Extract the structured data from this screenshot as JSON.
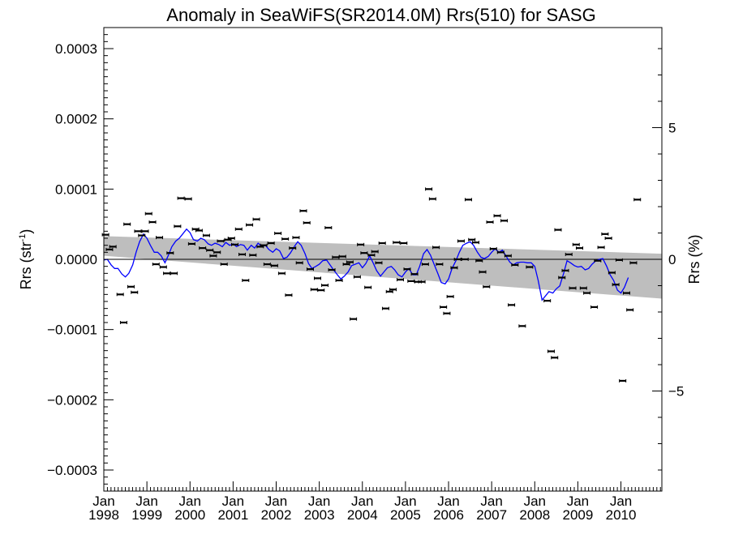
{
  "chart_data": {
    "type": "scatter",
    "title": "Anomaly in SeaWiFS(SR2014.0M) Rrs(510) for SASG",
    "ylabel_left": "Rrs (str",
    "ylabel_left_sup": "-1",
    "ylabel_left_close": ")",
    "ylabel_right": "Rrs (%)",
    "xlim": [
      1998.0,
      2010.95
    ],
    "ylim": [
      -0.00033,
      0.00033
    ],
    "y2lim": [
      -8.8,
      8.8
    ],
    "x_month_label": "Jan",
    "x_ticks": [
      1998,
      1999,
      2000,
      2001,
      2002,
      2003,
      2004,
      2005,
      2006,
      2007,
      2008,
      2009,
      2010
    ],
    "x_tick_labels": [
      "1998",
      "1999",
      "2000",
      "2001",
      "2002",
      "2003",
      "2004",
      "2005",
      "2006",
      "2007",
      "2008",
      "2009",
      "2010"
    ],
    "y_ticks": [
      -0.0003,
      -0.0002,
      -0.0001,
      0.0,
      0.0001,
      0.0002,
      0.0003
    ],
    "y_tick_labels": [
      "−0.0003",
      "−0.0002",
      "−0.0001",
      "0.0000",
      "0.0001",
      "0.0002",
      "0.0003"
    ],
    "y2_ticks": [
      -5,
      0,
      5
    ],
    "y2_tick_labels": [
      "−5",
      "0",
      "5"
    ],
    "trend_band": {
      "x": [
        1998.0,
        2010.95
      ],
      "upper": [
        3.3e-05,
        8e-06
      ],
      "lower": [
        5e-06,
        -5.6e-05
      ]
    },
    "zero_line": 0.0,
    "colors": {
      "band": "#bebebe",
      "line": "#0000ff",
      "points": "#000000"
    },
    "points": [
      [
        1998.04,
        3.5e-05
      ],
      [
        1998.13,
        1.4e-05
      ],
      [
        1998.21,
        1.8e-05
      ],
      [
        1998.38,
        -5e-05
      ],
      [
        1998.46,
        -9e-05
      ],
      [
        1998.54,
        5e-05
      ],
      [
        1998.63,
        -3.9e-05
      ],
      [
        1998.71,
        -4.7e-05
      ],
      [
        1998.79,
        4e-05
      ],
      [
        1998.88,
        3.4e-05
      ],
      [
        1998.96,
        4e-05
      ],
      [
        1999.04,
        6.5e-05
      ],
      [
        1999.13,
        5.3e-05
      ],
      [
        1999.21,
        -7e-06
      ],
      [
        1999.29,
        3.1e-05
      ],
      [
        1999.38,
        -1.1e-05
      ],
      [
        1999.46,
        -2e-05
      ],
      [
        1999.54,
        9e-06
      ],
      [
        1999.63,
        -2e-05
      ],
      [
        1999.71,
        4.7e-05
      ],
      [
        1999.79,
        8.7e-05
      ],
      [
        1999.96,
        8.6e-05
      ],
      [
        2000.04,
        2.2e-05
      ],
      [
        2000.13,
        4.3e-05
      ],
      [
        2000.21,
        4.1e-05
      ],
      [
        2000.29,
        1.6e-05
      ],
      [
        2000.38,
        3.4e-05
      ],
      [
        2000.46,
        1.3e-05
      ],
      [
        2000.54,
        5e-06
      ],
      [
        2000.63,
        1e-05
      ],
      [
        2000.71,
        2.6e-05
      ],
      [
        2000.79,
        -7e-06
      ],
      [
        2000.88,
        2.8e-05
      ],
      [
        2000.96,
        3e-05
      ],
      [
        2001.04,
        2.1e-05
      ],
      [
        2001.13,
        4.3e-05
      ],
      [
        2001.21,
        7e-06
      ],
      [
        2001.29,
        -3e-05
      ],
      [
        2001.38,
        4.9e-05
      ],
      [
        2001.46,
        6e-06
      ],
      [
        2001.54,
        5.7e-05
      ],
      [
        2001.63,
        1.8e-05
      ],
      [
        2001.71,
        2e-05
      ],
      [
        2001.79,
        -7e-06
      ],
      [
        2001.88,
        2.3e-05
      ],
      [
        2001.96,
        -9e-06
      ],
      [
        2002.04,
        3.7e-05
      ],
      [
        2002.13,
        -2e-05
      ],
      [
        2002.21,
        2.9e-05
      ],
      [
        2002.29,
        -5.1e-05
      ],
      [
        2002.38,
        1.6e-05
      ],
      [
        2002.46,
        3.1e-05
      ],
      [
        2002.54,
        -5e-06
      ],
      [
        2002.63,
        6.9e-05
      ],
      [
        2002.71,
        5.2e-05
      ],
      [
        2002.79,
        -1.4e-05
      ],
      [
        2002.88,
        -4.3e-05
      ],
      [
        2002.96,
        -2.7e-05
      ],
      [
        2003.04,
        -4.4e-05
      ],
      [
        2003.13,
        -3.7e-05
      ],
      [
        2003.21,
        4.5e-05
      ],
      [
        2003.29,
        -1.5e-05
      ],
      [
        2003.38,
        3e-06
      ],
      [
        2003.46,
        -3e-05
      ],
      [
        2003.54,
        4e-06
      ],
      [
        2003.63,
        -7e-06
      ],
      [
        2003.71,
        -4e-06
      ],
      [
        2003.79,
        -8.5e-05
      ],
      [
        2003.88,
        -2.5e-05
      ],
      [
        2003.96,
        2.1e-05
      ],
      [
        2004.04,
        9e-06
      ],
      [
        2004.13,
        -4e-05
      ],
      [
        2004.21,
        6e-06
      ],
      [
        2004.29,
        1.1e-05
      ],
      [
        2004.38,
        -5e-06
      ],
      [
        2004.46,
        2.3e-05
      ],
      [
        2004.54,
        -7e-05
      ],
      [
        2004.63,
        -4.6e-05
      ],
      [
        2004.71,
        -4.3e-05
      ],
      [
        2004.79,
        2.4e-05
      ],
      [
        2004.88,
        -2.9e-05
      ],
      [
        2004.96,
        2.3e-05
      ],
      [
        2005.04,
        -1.4e-05
      ],
      [
        2005.13,
        -3.1e-05
      ],
      [
        2005.21,
        -2.1e-05
      ],
      [
        2005.29,
        -3.2e-05
      ],
      [
        2005.38,
        -3.2e-05
      ],
      [
        2005.46,
        -7e-06
      ],
      [
        2005.54,
        0.0001
      ],
      [
        2005.63,
        8.6e-05
      ],
      [
        2005.71,
        1.7e-05
      ],
      [
        2005.79,
        -7e-06
      ],
      [
        2005.88,
        -6.8e-05
      ],
      [
        2005.96,
        -7.7e-05
      ],
      [
        2006.04,
        -5.3e-05
      ],
      [
        2006.13,
        -1.2e-05
      ],
      [
        2006.21,
        0.0
      ],
      [
        2006.29,
        2.6e-05
      ],
      [
        2006.38,
        0.0
      ],
      [
        2006.46,
        8.5e-05
      ],
      [
        2006.54,
        2.8e-05
      ],
      [
        2006.63,
        2.4e-05
      ],
      [
        2006.71,
        -2e-06
      ],
      [
        2006.79,
        -1.8e-05
      ],
      [
        2006.88,
        -3.9e-05
      ],
      [
        2006.96,
        5.3e-05
      ],
      [
        2007.04,
        1.5e-05
      ],
      [
        2007.13,
        6.2e-05
      ],
      [
        2007.21,
        1e-05
      ],
      [
        2007.29,
        5.5e-05
      ],
      [
        2007.38,
        5e-06
      ],
      [
        2007.46,
        -6.5e-05
      ],
      [
        2007.54,
        -8e-06
      ],
      [
        2007.71,
        -9.5e-05
      ],
      [
        2007.88,
        -1.1e-05
      ],
      [
        2008.29,
        -5.9e-05
      ],
      [
        2008.38,
        -0.000131
      ],
      [
        2008.46,
        -0.00014
      ],
      [
        2008.54,
        4.2e-05
      ],
      [
        2008.63,
        -2.6e-05
      ],
      [
        2008.71,
        -1.6e-05
      ],
      [
        2008.79,
        7e-06
      ],
      [
        2008.88,
        -4.1e-05
      ],
      [
        2008.96,
        2.1e-05
      ],
      [
        2009.04,
        1.6e-05
      ],
      [
        2009.13,
        -4.1e-05
      ],
      [
        2009.21,
        -4.8e-05
      ],
      [
        2009.38,
        -6.8e-05
      ],
      [
        2009.46,
        -2e-06
      ],
      [
        2009.54,
        1.7e-05
      ],
      [
        2009.63,
        3.6e-05
      ],
      [
        2009.71,
        3e-05
      ],
      [
        2009.79,
        -1.9e-05
      ],
      [
        2009.88,
        -3.6e-05
      ],
      [
        2009.96,
        -1e-06
      ],
      [
        2010.04,
        -0.000173
      ],
      [
        2010.13,
        -4.8e-05
      ],
      [
        2010.21,
        -7.2e-05
      ],
      [
        2010.29,
        -5e-06
      ],
      [
        2010.38,
        8.5e-05
      ]
    ],
    "line": [
      [
        1998.0,
        -1e-06
      ],
      [
        1998.08,
        0.0
      ],
      [
        1998.17,
        -8e-06
      ],
      [
        1998.25,
        -1.3e-05
      ],
      [
        1998.33,
        -1.3e-05
      ],
      [
        1998.42,
        -2.1e-05
      ],
      [
        1998.5,
        -2.5e-05
      ],
      [
        1998.58,
        -2e-05
      ],
      [
        1998.67,
        -8e-06
      ],
      [
        1998.75,
        1e-05
      ],
      [
        1998.83,
        2.5e-05
      ],
      [
        1998.92,
        3.6e-05
      ],
      [
        1999.0,
        3e-05
      ],
      [
        1999.08,
        2e-05
      ],
      [
        1999.17,
        1e-05
      ],
      [
        1999.25,
        1e-05
      ],
      [
        1999.33,
        5e-06
      ],
      [
        1999.42,
        -5e-06
      ],
      [
        1999.5,
        6e-06
      ],
      [
        1999.58,
        1.8e-05
      ],
      [
        1999.67,
        2.6e-05
      ],
      [
        1999.75,
        3e-05
      ],
      [
        1999.83,
        3.6e-05
      ],
      [
        1999.92,
        4.3e-05
      ],
      [
        2000.0,
        3.8e-05
      ],
      [
        2000.08,
        2.8e-05
      ],
      [
        2000.17,
        2.6e-05
      ],
      [
        2000.25,
        3e-05
      ],
      [
        2000.33,
        2.8e-05
      ],
      [
        2000.42,
        2.2e-05
      ],
      [
        2000.5,
        2e-05
      ],
      [
        2000.58,
        2.3e-05
      ],
      [
        2000.67,
        2.1e-05
      ],
      [
        2000.75,
        1.8e-05
      ],
      [
        2000.83,
        2.4e-05
      ],
      [
        2000.92,
        2e-05
      ],
      [
        2001.0,
        2.2e-05
      ],
      [
        2001.08,
        1.8e-05
      ],
      [
        2001.17,
        2.1e-05
      ],
      [
        2001.25,
        2e-05
      ],
      [
        2001.33,
        1.3e-05
      ],
      [
        2001.42,
        2e-05
      ],
      [
        2001.5,
        1.6e-05
      ],
      [
        2001.58,
        2.3e-05
      ],
      [
        2001.67,
        1.8e-05
      ],
      [
        2001.75,
        2e-05
      ],
      [
        2001.83,
        1.4e-05
      ],
      [
        2001.92,
        1e-05
      ],
      [
        2002.0,
        1.5e-05
      ],
      [
        2002.08,
        1.2e-05
      ],
      [
        2002.17,
        1e-06
      ],
      [
        2002.25,
        3e-06
      ],
      [
        2002.33,
        9e-06
      ],
      [
        2002.42,
        1.8e-05
      ],
      [
        2002.5,
        2.5e-05
      ],
      [
        2002.58,
        2e-05
      ],
      [
        2002.67,
        8e-06
      ],
      [
        2002.75,
        -6e-06
      ],
      [
        2002.83,
        -1.3e-05
      ],
      [
        2002.92,
        -1e-05
      ],
      [
        2003.0,
        -7e-06
      ],
      [
        2003.08,
        -2e-06
      ],
      [
        2003.17,
        -1e-06
      ],
      [
        2003.25,
        -8e-06
      ],
      [
        2003.33,
        -1.5e-05
      ],
      [
        2003.42,
        -2.2e-05
      ],
      [
        2003.5,
        -2.8e-05
      ],
      [
        2003.58,
        -2.4e-05
      ],
      [
        2003.67,
        -1.8e-05
      ],
      [
        2003.75,
        -9e-06
      ],
      [
        2003.83,
        -7e-06
      ],
      [
        2003.92,
        -5e-06
      ],
      [
        2004.0,
        -1.2e-05
      ],
      [
        2004.08,
        -6e-06
      ],
      [
        2004.17,
        5e-06
      ],
      [
        2004.25,
        -5e-06
      ],
      [
        2004.33,
        -1.6e-05
      ],
      [
        2004.42,
        -2.4e-05
      ],
      [
        2004.5,
        -1.8e-05
      ],
      [
        2004.58,
        -1.2e-05
      ],
      [
        2004.67,
        -1e-05
      ],
      [
        2004.75,
        -1.5e-05
      ],
      [
        2004.83,
        -2.2e-05
      ],
      [
        2004.92,
        -2.5e-05
      ],
      [
        2005.0,
        -1.8e-05
      ],
      [
        2005.08,
        -1.3e-05
      ],
      [
        2005.17,
        -2.2e-05
      ],
      [
        2005.25,
        -2.2e-05
      ],
      [
        2005.33,
        -1e-05
      ],
      [
        2005.42,
        8e-06
      ],
      [
        2005.5,
        1.4e-05
      ],
      [
        2005.58,
        6e-06
      ],
      [
        2005.67,
        -8e-06
      ],
      [
        2005.75,
        -2e-05
      ],
      [
        2005.83,
        -3.3e-05
      ],
      [
        2005.92,
        -3.5e-05
      ],
      [
        2006.0,
        -2.8e-05
      ],
      [
        2006.08,
        -1.3e-05
      ],
      [
        2006.17,
        -2e-06
      ],
      [
        2006.25,
        1e-05
      ],
      [
        2006.33,
        2e-05
      ],
      [
        2006.42,
        2.3e-05
      ],
      [
        2006.5,
        2.5e-05
      ],
      [
        2006.58,
        2e-05
      ],
      [
        2006.67,
        1e-05
      ],
      [
        2006.75,
        3e-06
      ],
      [
        2006.83,
        1e-06
      ],
      [
        2006.92,
        4e-06
      ],
      [
        2007.0,
        1e-05
      ],
      [
        2007.08,
        1.5e-05
      ],
      [
        2007.17,
        1e-05
      ],
      [
        2007.25,
        1.3e-05
      ],
      [
        2007.33,
        5e-06
      ],
      [
        2007.42,
        -4e-06
      ],
      [
        2007.5,
        -8e-06
      ],
      [
        2007.58,
        -5e-06
      ],
      [
        2007.67,
        -4e-06
      ],
      [
        2007.75,
        -4e-06
      ],
      [
        2007.83,
        -5e-06
      ],
      [
        2007.92,
        -5e-06
      ],
      [
        2008.0,
        -1e-05
      ],
      [
        2008.08,
        -3e-05
      ],
      [
        2008.17,
        -5.8e-05
      ],
      [
        2008.25,
        -5.2e-05
      ],
      [
        2008.33,
        -4.6e-05
      ],
      [
        2008.42,
        -4.8e-05
      ],
      [
        2008.5,
        -4.2e-05
      ],
      [
        2008.58,
        -3.8e-05
      ],
      [
        2008.67,
        -2e-05
      ],
      [
        2008.75,
        -2e-06
      ],
      [
        2008.83,
        -5e-06
      ],
      [
        2008.92,
        -9e-06
      ],
      [
        2009.0,
        -1.1e-05
      ],
      [
        2009.08,
        -1e-05
      ],
      [
        2009.17,
        -1.5e-05
      ],
      [
        2009.25,
        -1.3e-05
      ],
      [
        2009.33,
        -7e-06
      ],
      [
        2009.42,
        -2e-06
      ],
      [
        2009.5,
        0.0
      ],
      [
        2009.58,
        1e-06
      ],
      [
        2009.67,
        -1e-05
      ],
      [
        2009.75,
        -2.2e-05
      ],
      [
        2009.83,
        -3e-05
      ],
      [
        2009.92,
        -4.4e-05
      ],
      [
        2010.0,
        -4.8e-05
      ],
      [
        2010.08,
        -4e-05
      ],
      [
        2010.17,
        -2.6e-05
      ]
    ]
  }
}
